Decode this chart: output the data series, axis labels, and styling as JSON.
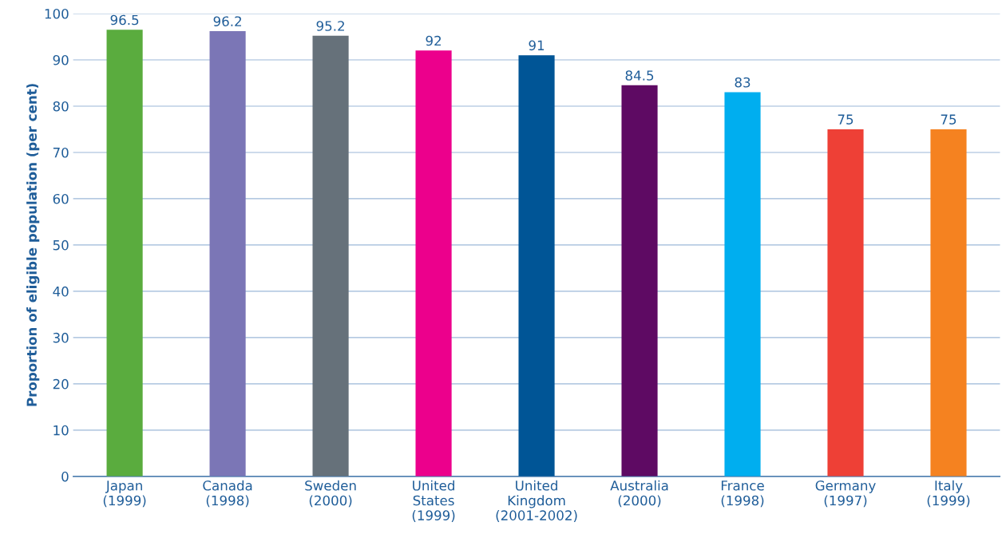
{
  "chart_data": {
    "type": "bar",
    "ylabel": "Proportion of eligible population (per cent)",
    "categories": [
      "Japan\n(1999)",
      "Canada\n(1998)",
      "Sweden\n(2000)",
      "United\nStates\n(1999)",
      "United\nKingdom\n(2001-2002)",
      "Australia\n(2000)",
      "France\n(1998)",
      "Germany\n(1997)",
      "Italy\n(1999)"
    ],
    "values": [
      96.5,
      96.2,
      95.2,
      92,
      91,
      84.5,
      83,
      75,
      75
    ],
    "colors": [
      "#5aac3e",
      "#7b76b6",
      "#66717a",
      "#ec008c",
      "#005596",
      "#5e0a63",
      "#00aeef",
      "#ee4036",
      "#f58220"
    ],
    "ylim": [
      0,
      100
    ],
    "yticks": [
      0,
      10,
      20,
      30,
      40,
      50,
      60,
      70,
      80,
      90,
      100
    ],
    "grid": "y",
    "data_labels": true,
    "legend": false
  }
}
